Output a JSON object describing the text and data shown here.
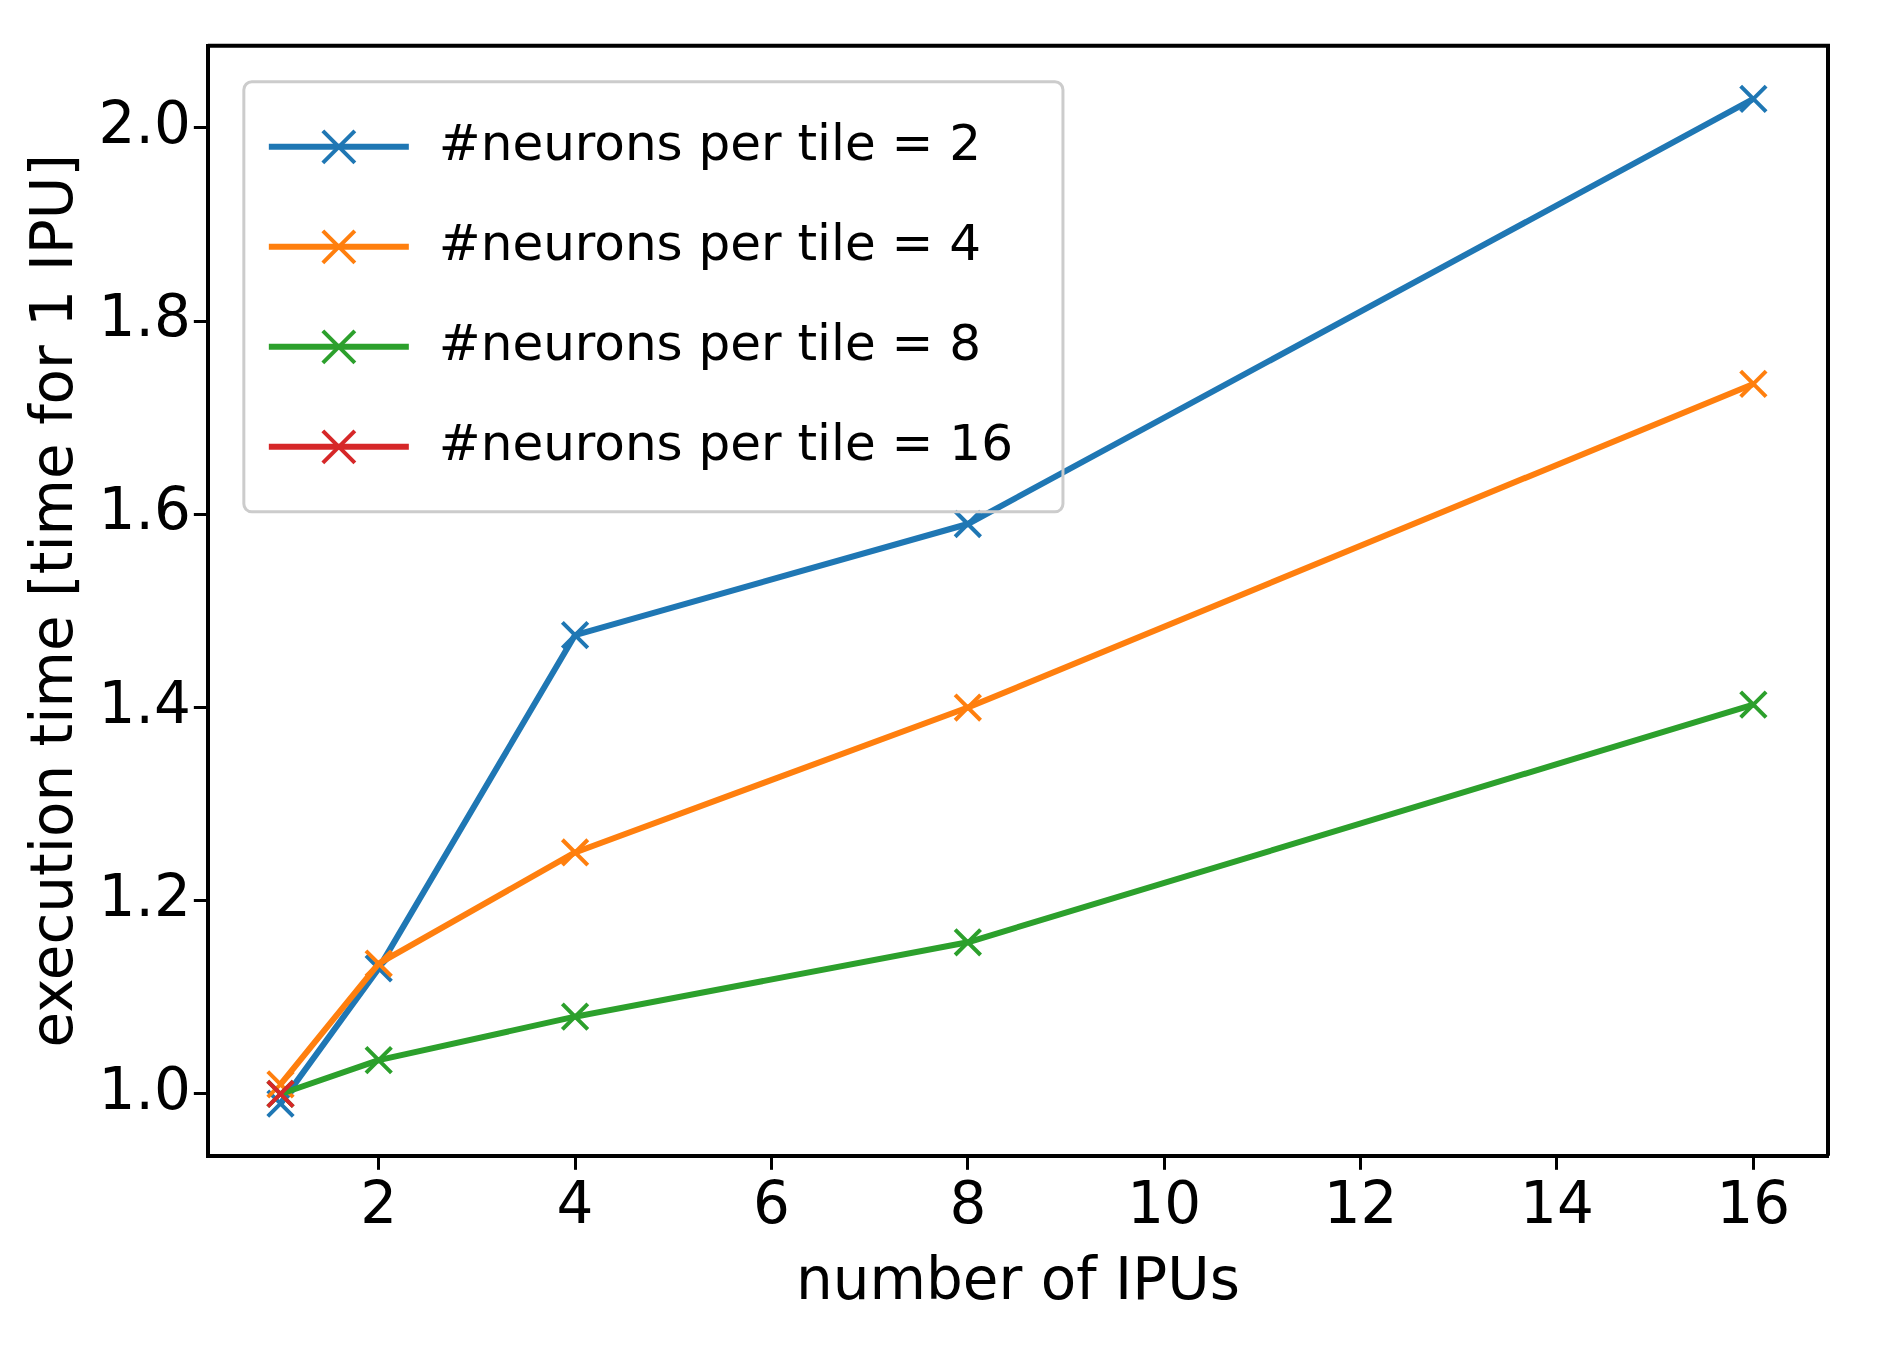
{
  "chart_data": {
    "type": "line",
    "xlabel": "number of IPUs",
    "ylabel": "execution time [time for 1 IPU]",
    "x": [
      1,
      2,
      4,
      8,
      16
    ],
    "series": [
      {
        "name": "#neurons per tile = 2",
        "color": "#1f77b4",
        "values": [
          0.99,
          1.13,
          1.475,
          1.59,
          2.03
        ]
      },
      {
        "name": "#neurons per tile = 4",
        "color": "#ff7f0e",
        "values": [
          1.01,
          1.135,
          1.25,
          1.4,
          1.735
        ]
      },
      {
        "name": "#neurons per tile = 8",
        "color": "#2ca02c",
        "values": [
          1.0,
          1.035,
          1.08,
          1.157,
          1.403
        ]
      },
      {
        "name": "#neurons per tile = 16",
        "color": "#d62728",
        "values": [
          1.0,
          null,
          null,
          null,
          null
        ]
      }
    ],
    "xlim": [
      0.26,
      16.76
    ],
    "xticks": [
      2,
      4,
      6,
      8,
      10,
      12,
      14,
      16
    ],
    "ylim": [
      0.936,
      2.085
    ],
    "yticks": [
      {
        "value": 1,
        "label": "1.0"
      },
      {
        "value": 1.2,
        "label": "1.2"
      },
      {
        "value": 1.4,
        "label": "1.4"
      },
      {
        "value": 1.6,
        "label": "1.6"
      },
      {
        "value": 1.8,
        "label": "1.8"
      },
      {
        "value": 2,
        "label": "2.0"
      }
    ],
    "grid": false,
    "legend": "top left",
    "marker": "cross",
    "line_style": "solid"
  }
}
